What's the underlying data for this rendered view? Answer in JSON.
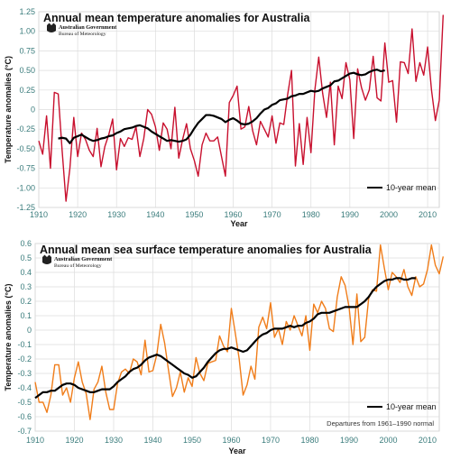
{
  "colors": {
    "temp_series": "#c8102e",
    "sst_series": "#f07d1a",
    "mean_line": "#000000",
    "grid": "#dcdcdc",
    "tick_text": "#3a7c7c"
  },
  "chart_data": [
    {
      "type": "line",
      "title": "Annual mean temperature anomalies for Australia",
      "xlabel": "Year",
      "ylabel": "Temperature anomalies (°C)",
      "logo": {
        "line1": "Australian Government",
        "line2": "Bureau of Meteorology"
      },
      "xlim": [
        1910,
        2013
      ],
      "ylim": [
        -1.25,
        1.25
      ],
      "grid": true,
      "legend": {
        "placement": "bottom-right",
        "entries": [
          "10-year mean"
        ]
      },
      "x_ticks": [
        "1910",
        "1920",
        "1930",
        "1940",
        "1950",
        "1960",
        "1970",
        "1980",
        "1990",
        "2000",
        "2010"
      ],
      "y_ticks": [
        "1.25",
        "1.00",
        "0.75",
        "0.50",
        "0.25",
        "0",
        "-0.25",
        "-0.50",
        "-0.75",
        "-1.00",
        "-1.25"
      ],
      "series": [
        {
          "x_start": 1910,
          "values": [
            -0.4,
            -0.57,
            -0.08,
            -0.75,
            0.22,
            0.2,
            -0.52,
            -1.17,
            -0.75,
            -0.1,
            -0.6,
            -0.3,
            -0.38,
            -0.52,
            -0.6,
            -0.24,
            -0.73,
            -0.47,
            -0.32,
            -0.12,
            -0.77,
            -0.37,
            -0.47,
            -0.36,
            -0.38,
            -0.22,
            -0.6,
            -0.37,
            0.0,
            -0.06,
            -0.22,
            -0.52,
            -0.17,
            -0.25,
            -0.5,
            0.03,
            -0.62,
            -0.38,
            -0.18,
            -0.5,
            -0.65,
            -0.85,
            -0.45,
            -0.3,
            -0.4,
            -0.4,
            -0.35,
            -0.6,
            -0.85,
            0.09,
            0.18,
            0.3,
            -0.25,
            -0.22,
            0.04,
            -0.27,
            -0.45,
            -0.15,
            -0.25,
            -0.35,
            -0.08,
            -0.43,
            -0.17,
            -0.19,
            0.19,
            0.5,
            -0.72,
            -0.18,
            -0.7,
            -0.1,
            -0.55,
            0.25,
            0.67,
            0.21,
            -0.1,
            0.35,
            -0.45,
            0.3,
            0.14,
            0.6,
            0.38,
            -0.37,
            0.52,
            0.28,
            0.12,
            0.25,
            0.68,
            0.15,
            0.11,
            0.85,
            0.35,
            0.37,
            -0.16,
            0.61,
            0.6,
            0.46,
            1.03,
            0.36,
            0.6,
            0.44,
            0.8,
            0.25,
            -0.14,
            0.12,
            1.21
          ]
        },
        {
          "name": "10-year mean",
          "x_start": 1915,
          "values": [
            -0.37,
            -0.36,
            -0.37,
            -0.43,
            -0.36,
            -0.34,
            -0.32,
            -0.35,
            -0.38,
            -0.4,
            -0.39,
            -0.37,
            -0.36,
            -0.34,
            -0.33,
            -0.3,
            -0.28,
            -0.25,
            -0.24,
            -0.23,
            -0.21,
            -0.2,
            -0.22,
            -0.24,
            -0.28,
            -0.31,
            -0.34,
            -0.37,
            -0.4,
            -0.39,
            -0.4,
            -0.41,
            -0.4,
            -0.38,
            -0.32,
            -0.24,
            -0.17,
            -0.12,
            -0.07,
            -0.07,
            -0.08,
            -0.1,
            -0.12,
            -0.16,
            -0.13,
            -0.11,
            -0.14,
            -0.18,
            -0.19,
            -0.18,
            -0.15,
            -0.11,
            -0.05,
            0.0,
            0.02,
            0.06,
            0.08,
            0.12,
            0.13,
            0.14,
            0.17,
            0.18,
            0.2,
            0.2,
            0.22,
            0.24,
            0.23,
            0.24,
            0.27,
            0.29,
            0.31,
            0.36,
            0.37,
            0.4,
            0.43,
            0.46,
            0.47,
            0.45,
            0.44,
            0.45,
            0.48,
            0.5,
            0.51,
            0.49,
            0.5
          ]
        }
      ]
    },
    {
      "type": "line",
      "title": "Annual mean sea surface temperature anomalies for Australia",
      "xlabel": "Year",
      "ylabel": "Temperature anomalies (°C)",
      "logo": {
        "line1": "Australian Government",
        "line2": "Bureau of Meteorology"
      },
      "note": "Departures from 1961–1990 normal",
      "xlim": [
        1910,
        2013
      ],
      "ylim": [
        -0.7,
        0.6
      ],
      "grid": true,
      "legend": {
        "placement": "bottom-right",
        "entries": [
          "10-year mean"
        ]
      },
      "x_ticks": [
        "1910",
        "1920",
        "1930",
        "1940",
        "1950",
        "1960",
        "1970",
        "1980",
        "1990",
        "2000",
        "2010"
      ],
      "y_ticks": [
        "0.6",
        "0.5",
        "0.4",
        "0.3",
        "0.2",
        "0.1",
        "0",
        "-0.1",
        "-0.2",
        "-0.3",
        "-0.4",
        "-0.5",
        "-0.6",
        "-0.7"
      ],
      "series": [
        {
          "x_start": 1910,
          "values": [
            -0.36,
            -0.5,
            -0.5,
            -0.57,
            -0.45,
            -0.24,
            -0.24,
            -0.45,
            -0.4,
            -0.5,
            -0.33,
            -0.22,
            -0.36,
            -0.44,
            -0.62,
            -0.41,
            -0.36,
            -0.25,
            -0.43,
            -0.55,
            -0.55,
            -0.37,
            -0.29,
            -0.27,
            -0.3,
            -0.2,
            -0.22,
            -0.31,
            -0.07,
            -0.29,
            -0.28,
            -0.17,
            0.04,
            -0.09,
            -0.28,
            -0.46,
            -0.4,
            -0.29,
            -0.43,
            -0.33,
            -0.39,
            -0.19,
            -0.3,
            -0.35,
            -0.23,
            -0.22,
            -0.21,
            -0.04,
            -0.11,
            -0.15,
            0.15,
            -0.02,
            -0.2,
            -0.45,
            -0.38,
            -0.25,
            -0.34,
            0.02,
            0.09,
            0.01,
            0.19,
            -0.05,
            0.01,
            -0.1,
            0.06,
            0.0,
            0.1,
            0.03,
            -0.04,
            0.1,
            -0.14,
            0.18,
            0.12,
            0.2,
            0.15,
            0.01,
            -0.01,
            0.23,
            0.37,
            0.31,
            0.16,
            -0.1,
            0.25,
            -0.08,
            -0.05,
            0.22,
            0.28,
            0.27,
            0.59,
            0.43,
            0.28,
            0.4,
            0.37,
            0.33,
            0.42,
            0.3,
            0.24,
            0.37,
            0.3,
            0.32,
            0.42,
            0.59,
            0.45,
            0.39,
            0.51
          ]
        },
        {
          "name": "10-year mean",
          "x_start": 1910,
          "values": [
            -0.47,
            -0.45,
            -0.43,
            -0.43,
            -0.42,
            -0.42,
            -0.4,
            -0.38,
            -0.37,
            -0.37,
            -0.38,
            -0.4,
            -0.41,
            -0.42,
            -0.43,
            -0.43,
            -0.42,
            -0.41,
            -0.41,
            -0.41,
            -0.39,
            -0.36,
            -0.34,
            -0.32,
            -0.29,
            -0.27,
            -0.26,
            -0.24,
            -0.21,
            -0.19,
            -0.18,
            -0.17,
            -0.18,
            -0.2,
            -0.22,
            -0.24,
            -0.26,
            -0.28,
            -0.3,
            -0.31,
            -0.33,
            -0.32,
            -0.29,
            -0.26,
            -0.22,
            -0.19,
            -0.16,
            -0.14,
            -0.13,
            -0.13,
            -0.12,
            -0.13,
            -0.14,
            -0.15,
            -0.14,
            -0.11,
            -0.08,
            -0.05,
            -0.03,
            -0.02,
            0.0,
            0.01,
            0.01,
            0.01,
            0.02,
            0.03,
            0.02,
            0.03,
            0.03,
            0.05,
            0.06,
            0.08,
            0.11,
            0.12,
            0.12,
            0.12,
            0.13,
            0.14,
            0.15,
            0.16,
            0.16,
            0.16,
            0.16,
            0.18,
            0.2,
            0.23,
            0.27,
            0.3,
            0.32,
            0.34,
            0.35,
            0.35,
            0.36,
            0.36,
            0.35,
            0.35,
            0.36,
            0.36
          ]
        }
      ]
    }
  ]
}
